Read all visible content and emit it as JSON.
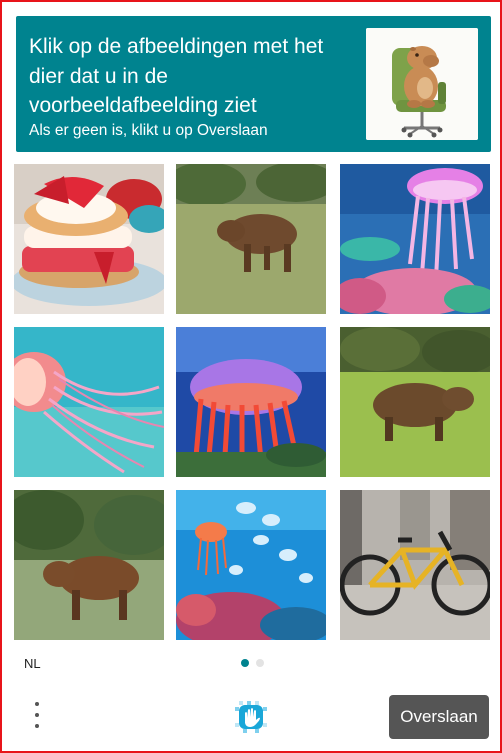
{
  "header": {
    "title": "Klik op de afbeeldingen met het dier dat u in de voorbeeldafbeelding ziet",
    "subtitle": "Als er geen is, klikt u op Overslaan",
    "example_subject": "capybara-on-office-chair"
  },
  "grid": {
    "tiles": [
      {
        "subject": "strawberry-shortcake"
      },
      {
        "subject": "capybara"
      },
      {
        "subject": "jellyfish"
      },
      {
        "subject": "jellyfish"
      },
      {
        "subject": "jellyfish"
      },
      {
        "subject": "capybara"
      },
      {
        "subject": "capybara"
      },
      {
        "subject": "jellyfish"
      },
      {
        "subject": "bicycle"
      }
    ]
  },
  "footer": {
    "language": "NL",
    "page_count": 2,
    "active_page": 1,
    "skip_label": "Overslaan",
    "menu_icon": "kebab-menu-icon",
    "logo_icon": "hand-logo-icon"
  },
  "colors": {
    "header_bg": "#00838f",
    "frame_border": "#e8141a",
    "skip_bg": "#555555",
    "dot_active": "#00838f",
    "dot_inactive": "#e3e3e3"
  }
}
